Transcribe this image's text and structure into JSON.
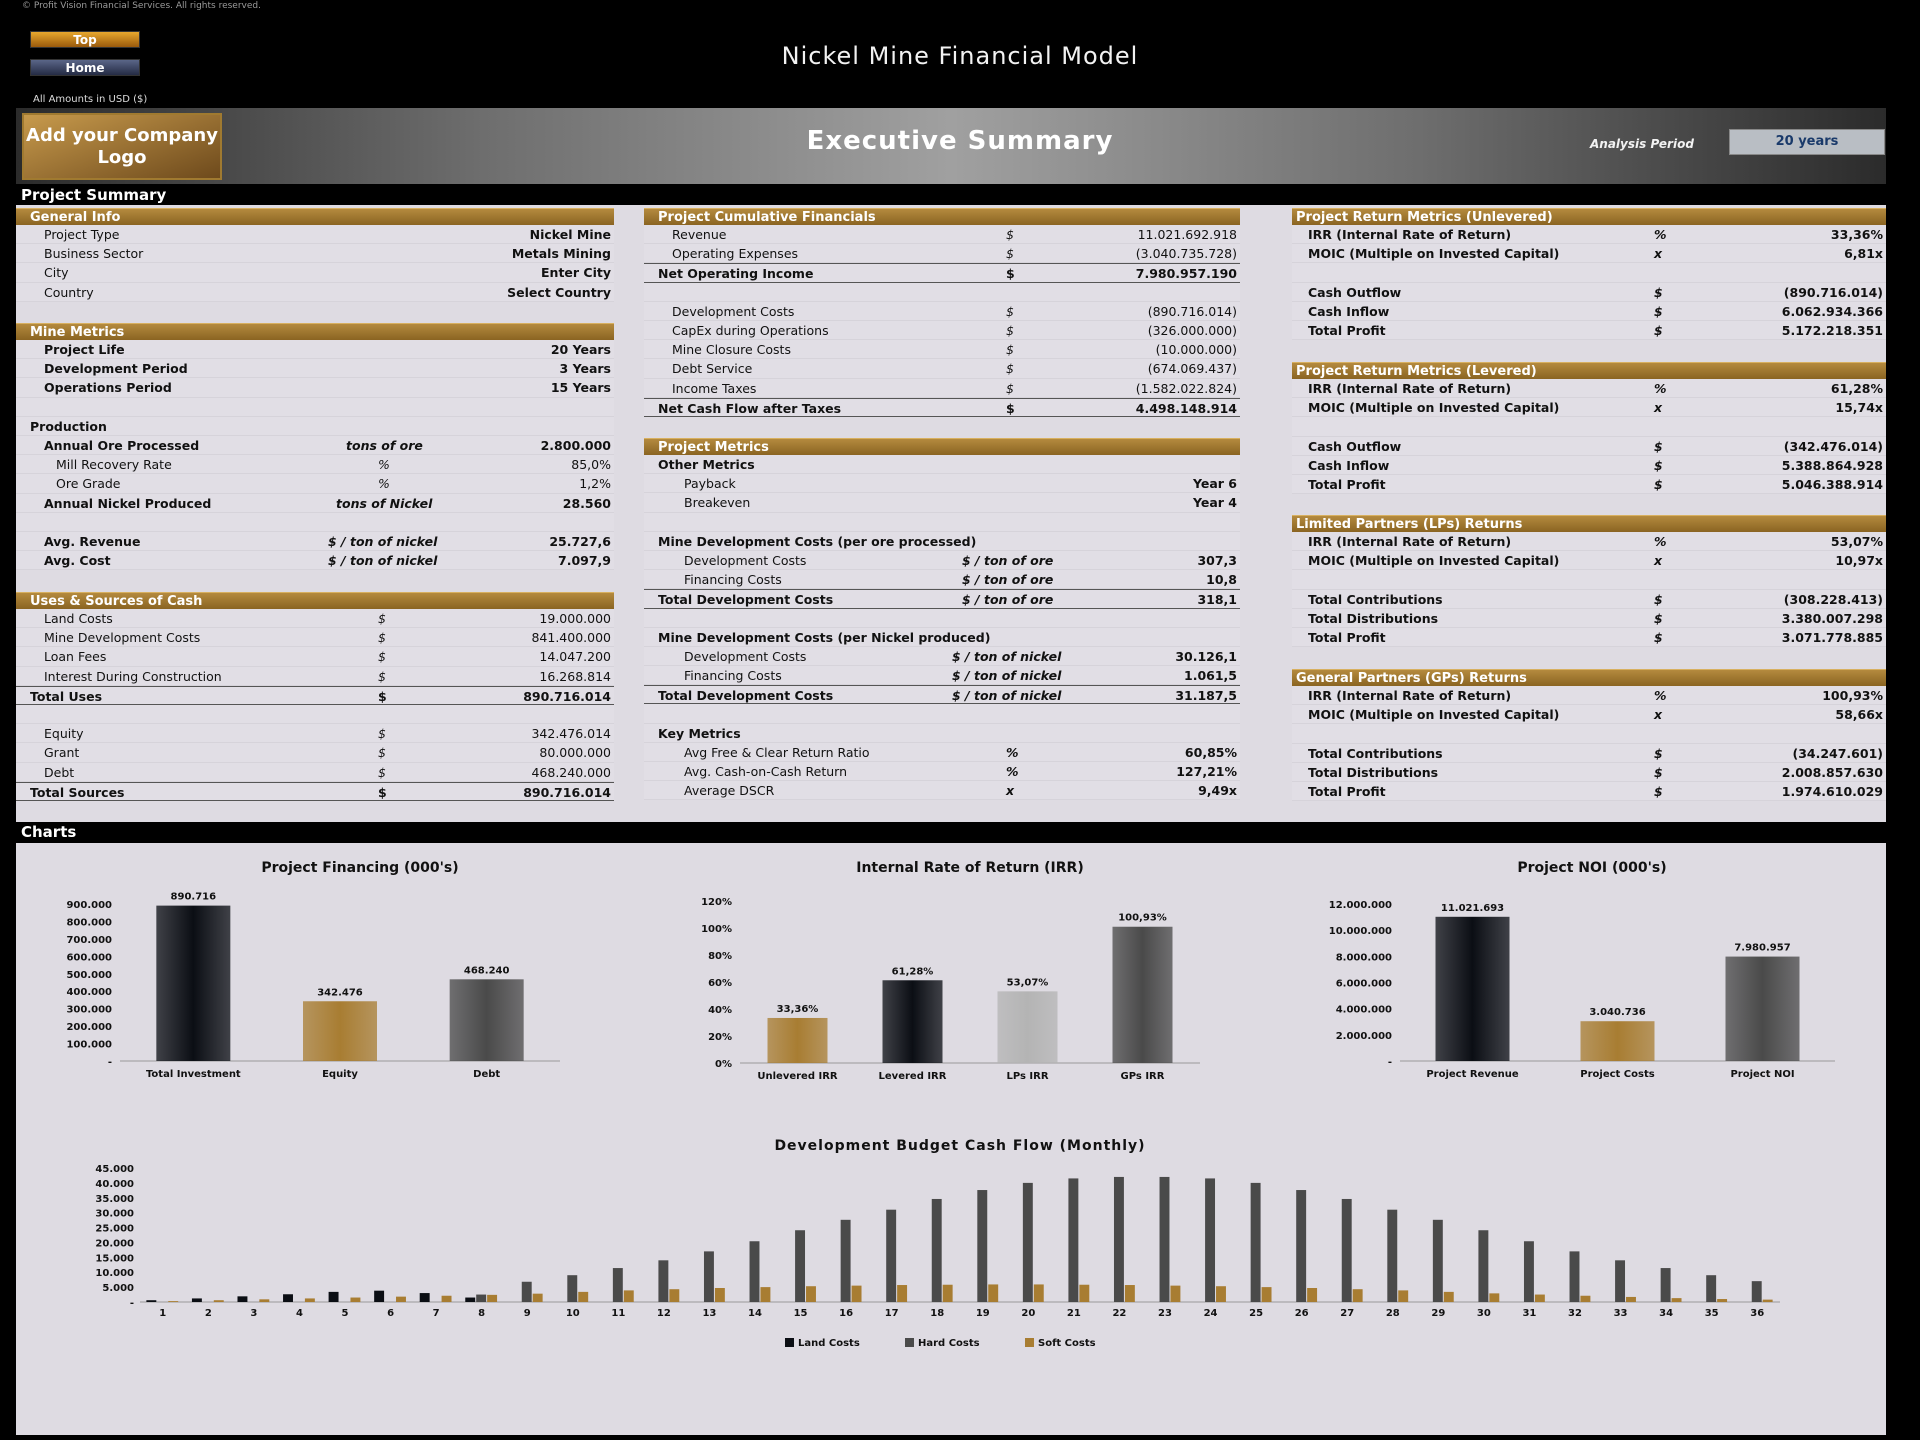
{
  "copyright": "© Profit Vision Financial Services. All rights reserved.",
  "nav": {
    "top": "Top",
    "home": "Home"
  },
  "title": "Nickel Mine Financial Model",
  "amounts_note": "All Amounts in  USD ($)",
  "logo_text": "Add your Company Logo",
  "exec_title": "Executive Summary",
  "analysis_period": {
    "label": "Analysis Period",
    "value": "20 years"
  },
  "sections": {
    "project_summary": "Project Summary",
    "charts": "Charts"
  },
  "general_info": {
    "header": "General Info",
    "rows": [
      {
        "label": "Project Type",
        "value": "Nickel Mine"
      },
      {
        "label": "Business Sector",
        "value": "Metals Mining"
      },
      {
        "label": "City",
        "value": "Enter City"
      },
      {
        "label": "Country",
        "value": "Select Country"
      }
    ]
  },
  "mine_metrics": {
    "header": "Mine Metrics",
    "project_life": {
      "label": "Project Life",
      "value": "20 Years"
    },
    "dev_period": {
      "label": "Development Period",
      "value": "3 Years"
    },
    "ops_period": {
      "label": "Operations Period",
      "value": "15 Years"
    },
    "production_label": "Production",
    "annual_ore": {
      "label": "Annual Ore Processed",
      "unit": "tons of ore",
      "value": "2.800.000"
    },
    "mill_recovery": {
      "label": "Mill Recovery Rate",
      "unit": "%",
      "value": "85,0%"
    },
    "ore_grade": {
      "label": "Ore Grade",
      "unit": "%",
      "value": "1,2%"
    },
    "annual_nickel": {
      "label": "Annual Nickel Produced",
      "unit": "tons of Nickel",
      "value": "28.560"
    },
    "avg_revenue": {
      "label": "Avg. Revenue",
      "unit": "$ / ton of nickel",
      "value": "25.727,6"
    },
    "avg_cost": {
      "label": "Avg. Cost",
      "unit": "$ / ton of nickel",
      "value": "7.097,9"
    }
  },
  "uses_sources": {
    "header": "Uses & Sources of Cash",
    "uses": [
      {
        "label": "Land Costs",
        "unit": "$",
        "value": "19.000.000"
      },
      {
        "label": "Mine Development Costs",
        "unit": "$",
        "value": "841.400.000"
      },
      {
        "label": "Loan Fees",
        "unit": "$",
        "value": "14.047.200"
      },
      {
        "label": "Interest During Construction",
        "unit": "$",
        "value": "16.268.814"
      }
    ],
    "total_uses": {
      "label": "Total Uses",
      "unit": "$",
      "value": "890.716.014"
    },
    "sources": [
      {
        "label": "Equity",
        "unit": "$",
        "value": "342.476.014"
      },
      {
        "label": "Grant",
        "unit": "$",
        "value": "80.000.000"
      },
      {
        "label": "Debt",
        "unit": "$",
        "value": "468.240.000"
      }
    ],
    "total_sources": {
      "label": "Total Sources",
      "unit": "$",
      "value": "890.716.014"
    }
  },
  "cumulative": {
    "header": "Project Cumulative Financials",
    "revenue": {
      "label": "Revenue",
      "unit": "$",
      "value": "11.021.692.918"
    },
    "opex": {
      "label": "Operating Expenses",
      "unit": "$",
      "value": "(3.040.735.728)"
    },
    "noi": {
      "label": "Net Operating Income",
      "unit": "$",
      "value": "7.980.957.190"
    },
    "dev_costs": {
      "label": "Development Costs",
      "unit": "$",
      "value": "(890.716.014)"
    },
    "capex": {
      "label": "CapEx during Operations",
      "unit": "$",
      "value": "(326.000.000)"
    },
    "closure": {
      "label": "Mine Closure Costs",
      "unit": "$",
      "value": "(10.000.000)"
    },
    "debt_service": {
      "label": "Debt Service",
      "unit": "$",
      "value": "(674.069.437)"
    },
    "income_taxes": {
      "label": "Income Taxes",
      "unit": "$",
      "value": "(1.582.022.824)"
    },
    "ncf": {
      "label": "Net Cash Flow after Taxes",
      "unit": "$",
      "value": "4.498.148.914"
    }
  },
  "project_metrics": {
    "header": "Project Metrics",
    "other_label": "Other Metrics",
    "payback": {
      "label": "Payback",
      "value": "Year 6"
    },
    "breakeven": {
      "label": "Breakeven",
      "value": "Year 4"
    },
    "ore_label": "Mine Development Costs (per ore processed)",
    "ore_dev": {
      "label": "Development Costs",
      "unit": "$ / ton of ore",
      "value": "307,3"
    },
    "ore_fin": {
      "label": "Financing Costs",
      "unit": "$ / ton of ore",
      "value": "10,8"
    },
    "ore_total": {
      "label": "Total Development Costs",
      "unit": "$ / ton of ore",
      "value": "318,1"
    },
    "ni_label": "Mine Development Costs (per Nickel produced)",
    "ni_dev": {
      "label": "Development Costs",
      "unit": "$ / ton of nickel",
      "value": "30.126,1"
    },
    "ni_fin": {
      "label": "Financing Costs",
      "unit": "$ / ton of nickel",
      "value": "1.061,5"
    },
    "ni_total": {
      "label": "Total Development Costs",
      "unit": "$ / ton of nickel",
      "value": "31.187,5"
    },
    "key_label": "Key Metrics",
    "free_clear": {
      "label": "Avg Free & Clear Return Ratio",
      "unit": "%",
      "value": "60,85%"
    },
    "coc": {
      "label": "Avg. Cash-on-Cash Return",
      "unit": "%",
      "value": "127,21%"
    },
    "dscr": {
      "label": "Average DSCR",
      "unit": "x",
      "value": "9,49x"
    }
  },
  "unlevered": {
    "header": "Project Return Metrics (Unlevered)",
    "irr": {
      "label": "IRR (Internal Rate of Return)",
      "unit": "%",
      "value": "33,36%"
    },
    "moic": {
      "label": "MOIC (Multiple on Invested Capital)",
      "unit": "x",
      "value": "6,81x"
    },
    "outflow": {
      "label": "Cash Outflow",
      "unit": "$",
      "value": "(890.716.014)"
    },
    "inflow": {
      "label": "Cash Inflow",
      "unit": "$",
      "value": "6.062.934.366"
    },
    "profit": {
      "label": "Total Profit",
      "unit": "$",
      "value": "5.172.218.351"
    }
  },
  "levered": {
    "header": "Project Return Metrics (Levered)",
    "irr": {
      "label": "IRR (Internal Rate of Return)",
      "unit": "%",
      "value": "61,28%"
    },
    "moic": {
      "label": "MOIC (Multiple on Invested Capital)",
      "unit": "x",
      "value": "15,74x"
    },
    "outflow": {
      "label": "Cash Outflow",
      "unit": "$",
      "value": "(342.476.014)"
    },
    "inflow": {
      "label": "Cash Inflow",
      "unit": "$",
      "value": "5.388.864.928"
    },
    "profit": {
      "label": "Total Profit",
      "unit": "$",
      "value": "5.046.388.914"
    }
  },
  "lps": {
    "header": "Limited Partners (LPs) Returns",
    "irr": {
      "label": "IRR (Internal Rate of Return)",
      "unit": "%",
      "value": "53,07%"
    },
    "moic": {
      "label": "MOIC (Multiple on Invested Capital)",
      "unit": "x",
      "value": "10,97x"
    },
    "contrib": {
      "label": "Total Contributions",
      "unit": "$",
      "value": "(308.228.413)"
    },
    "distrib": {
      "label": "Total Distributions",
      "unit": "$",
      "value": "3.380.007.298"
    },
    "profit": {
      "label": "Total Profit",
      "unit": "$",
      "value": "3.071.778.885"
    }
  },
  "gps": {
    "header": "General Partners (GPs) Returns",
    "irr": {
      "label": "IRR (Internal Rate of Return)",
      "unit": "%",
      "value": "100,93%"
    },
    "moic": {
      "label": "MOIC (Multiple on Invested Capital)",
      "unit": "x",
      "value": "58,66x"
    },
    "contrib": {
      "label": "Total Contributions",
      "unit": "$",
      "value": "(34.247.601)"
    },
    "distrib": {
      "label": "Total Distributions",
      "unit": "$",
      "value": "2.008.857.630"
    },
    "profit": {
      "label": "Total Profit",
      "unit": "$",
      "value": "1.974.610.029"
    }
  },
  "colors": {
    "gold": "#a87d32",
    "black_bar": "#0b0e14",
    "gray_bar": "#4a4a4a",
    "silver_bar": "#b4b4b4"
  },
  "chart_data": [
    {
      "type": "bar",
      "title": "Project Financing (000's)",
      "categories": [
        "Total Investment",
        "Equity",
        "Debt"
      ],
      "values": [
        890716,
        342476,
        468240
      ],
      "data_labels": [
        "890.716",
        "342.476",
        "468.240"
      ],
      "yticks": [
        "-",
        "100.000",
        "200.000",
        "300.000",
        "400.000",
        "500.000",
        "600.000",
        "700.000",
        "800.000",
        "900.000"
      ],
      "ylim": [
        0,
        900000
      ],
      "bar_colors": [
        "#0b0e14",
        "#a87d32",
        "#4a4a4a"
      ]
    },
    {
      "type": "bar",
      "title": "Internal Rate of Return (IRR)",
      "categories": [
        "Unlevered IRR",
        "Levered IRR",
        "LPs IRR",
        "GPs IRR"
      ],
      "values": [
        33.36,
        61.28,
        53.07,
        100.93
      ],
      "data_labels": [
        "33,36%",
        "61,28%",
        "53,07%",
        "100,93%"
      ],
      "yticks": [
        "0%",
        "20%",
        "40%",
        "60%",
        "80%",
        "100%",
        "120%"
      ],
      "ylim": [
        0,
        120
      ],
      "bar_colors": [
        "#a87d32",
        "#0b0e14",
        "#b4b4b4",
        "#4a4a4a"
      ]
    },
    {
      "type": "bar",
      "title": "Project NOI (000's)",
      "categories": [
        "Project Revenue",
        "Project Costs",
        "Project NOI"
      ],
      "values": [
        11021693,
        3040736,
        7980957
      ],
      "data_labels": [
        "11.021.693",
        "3.040.736",
        "7.980.957"
      ],
      "yticks": [
        "-",
        "2.000.000",
        "4.000.000",
        "6.000.000",
        "8.000.000",
        "10.000.000",
        "12.000.000"
      ],
      "ylim": [
        0,
        12000000
      ],
      "bar_colors": [
        "#0b0e14",
        "#a87d32",
        "#4a4a4a"
      ]
    },
    {
      "type": "bar",
      "title": "Development Budget Cash Flow (Monthly)",
      "categories": [
        "1",
        "2",
        "3",
        "4",
        "5",
        "6",
        "7",
        "8",
        "9",
        "10",
        "11",
        "12",
        "13",
        "14",
        "15",
        "16",
        "17",
        "18",
        "19",
        "20",
        "21",
        "22",
        "23",
        "24",
        "25",
        "26",
        "27",
        "28",
        "29",
        "30",
        "31",
        "32",
        "33",
        "34",
        "35",
        "36"
      ],
      "yticks": [
        "-",
        "5.000",
        "10.000",
        "15.000",
        "20.000",
        "25.000",
        "30.000",
        "35.000",
        "40.000",
        "45.000"
      ],
      "ylim": [
        0,
        45000
      ],
      "series": [
        {
          "name": "Land Costs",
          "color": "#0b0e14",
          "values": [
            600,
            1200,
            1900,
            2600,
            3400,
            3800,
            3000,
            1500,
            0,
            0,
            0,
            0,
            0,
            0,
            0,
            0,
            0,
            0,
            0,
            0,
            0,
            0,
            0,
            0,
            0,
            0,
            0,
            0,
            0,
            0,
            0,
            0,
            0,
            0,
            0,
            0
          ]
        },
        {
          "name": "Hard Costs",
          "color": "#4a4a4a",
          "values": [
            0,
            0,
            0,
            0,
            0,
            0,
            0,
            2500,
            6800,
            9000,
            11400,
            14000,
            17000,
            20400,
            24100,
            27600,
            31000,
            34600,
            37600,
            40000,
            41500,
            42000,
            42000,
            41500,
            40000,
            37600,
            34600,
            31000,
            27600,
            24100,
            20400,
            17000,
            14000,
            11400,
            9000,
            7000
          ]
        },
        {
          "name": "Soft Costs",
          "color": "#a87d32",
          "values": [
            300,
            600,
            900,
            1200,
            1500,
            1800,
            2100,
            2400,
            2800,
            3400,
            3900,
            4300,
            4700,
            5000,
            5300,
            5500,
            5700,
            5800,
            5900,
            5900,
            5800,
            5700,
            5500,
            5300,
            5000,
            4700,
            4300,
            3900,
            3400,
            2900,
            2500,
            2100,
            1700,
            1300,
            1000,
            800
          ]
        }
      ]
    }
  ]
}
